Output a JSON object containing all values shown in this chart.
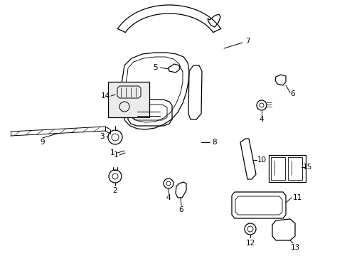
{
  "background_color": "#ffffff",
  "line_color": "#000000",
  "fig_width": 4.89,
  "fig_height": 3.6,
  "dpi": 100,
  "label_fs": 7.5,
  "lw": 0.9
}
